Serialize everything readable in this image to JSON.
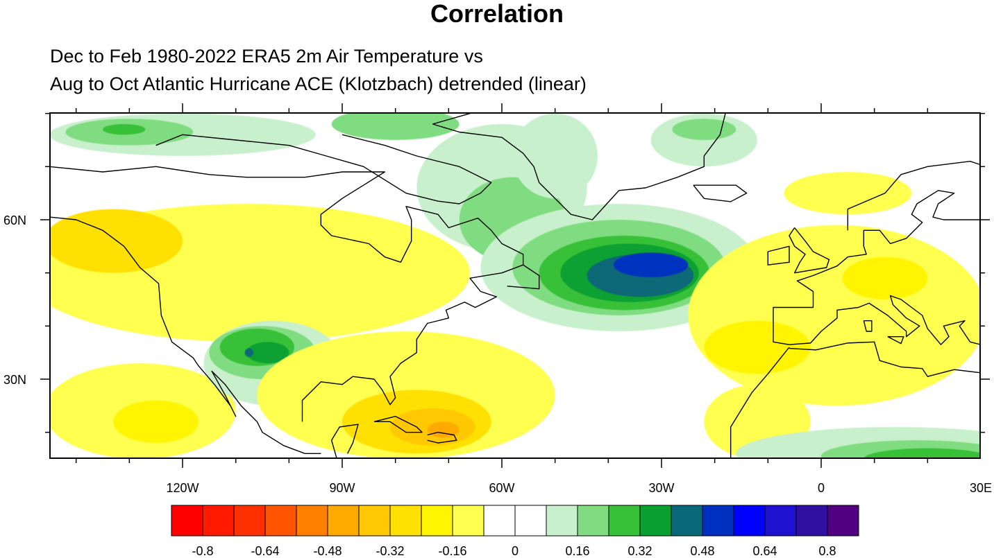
{
  "title": "Correlation",
  "subtitle_lines": [
    "Dec to Feb 1980-2022 ERA5 2m Air Temperature vs",
    "Aug to Oct Atlantic Hurricane ACE (Klotzbach) detrended (linear)"
  ],
  "chart_data": {
    "type": "heatmap",
    "projection": "cylindrical-equidistant",
    "lon_range": [
      -145,
      30
    ],
    "lat_range": [
      15,
      80
    ],
    "x_ticks": [
      {
        "lon": -120,
        "label": "120W"
      },
      {
        "lon": -90,
        "label": "90W"
      },
      {
        "lon": -60,
        "label": "60W"
      },
      {
        "lon": -30,
        "label": "30W"
      },
      {
        "lon": 0,
        "label": "0"
      },
      {
        "lon": 30,
        "label": "30E"
      }
    ],
    "y_ticks": [
      {
        "lat": 60,
        "label": "60N"
      },
      {
        "lat": 30,
        "label": "30N"
      }
    ],
    "colorbar": {
      "levels": [
        -0.8,
        -0.72,
        -0.64,
        -0.56,
        -0.48,
        -0.4,
        -0.32,
        -0.24,
        -0.16,
        -0.08,
        0,
        0.08,
        0.16,
        0.24,
        0.32,
        0.4,
        0.48,
        0.56,
        0.64,
        0.72,
        0.8
      ],
      "labels": [
        "-0.8",
        "-0.64",
        "-0.48",
        "-0.32",
        "-0.16",
        "0",
        "0.16",
        "0.32",
        "0.48",
        "0.64",
        "0.8"
      ],
      "colors": [
        "#ff0000",
        "#ff1a00",
        "#ff3000",
        "#ff5500",
        "#ff8000",
        "#ffaa00",
        "#ffc800",
        "#ffe000",
        "#fff500",
        "#ffff50",
        "#ffffff",
        "#ffffff",
        "#c8f0cc",
        "#80dc80",
        "#38c038",
        "#08a030",
        "#086878",
        "#0030c0",
        "#0000ff",
        "#2010d0",
        "#3010a0",
        "#500080"
      ]
    },
    "features": [
      {
        "region": "western North America",
        "lon": -108,
        "lat": 50,
        "rlon": 42,
        "rlat": 13,
        "value": -0.12
      },
      {
        "region": "Gulf of Alaska coast",
        "lon": -133,
        "lat": 56,
        "rlon": 13,
        "rlat": 6,
        "value": -0.28
      },
      {
        "region": "NE Pacific",
        "lon": -128,
        "lat": 24,
        "rlon": 18,
        "rlat": 9,
        "value": -0.12
      },
      {
        "region": "NE Pacific",
        "lon": -125,
        "lat": 22,
        "rlon": 8,
        "rlat": 4,
        "value": -0.2
      },
      {
        "region": "Southwest US / Mexico",
        "lon": -103,
        "lat": 33,
        "rlon": 13,
        "rlat": 8,
        "value": 0.1
      },
      {
        "region": "Southwest US",
        "lon": -105,
        "lat": 35,
        "rlon": 10,
        "rlat": 5,
        "value": 0.2
      },
      {
        "region": "Southwest US",
        "lon": -106,
        "lat": 36,
        "rlon": 7,
        "rlat": 3.5,
        "value": 0.3
      },
      {
        "region": "Southwest US",
        "lon": -104,
        "lat": 35,
        "rlon": 4,
        "rlat": 2,
        "value": 0.36
      },
      {
        "region": "Southwest US",
        "lon": -107.5,
        "lat": 35,
        "rlon": 0.8,
        "rlat": 0.8,
        "value": 0.44
      },
      {
        "region": "Gulf / Caribbean",
        "lon": -78,
        "lat": 27,
        "rlon": 28,
        "rlat": 12,
        "value": -0.12
      },
      {
        "region": "Caribbean",
        "lon": -76,
        "lat": 22,
        "rlon": 14,
        "rlat": 6,
        "value": -0.28
      },
      {
        "region": "Caribbean",
        "lon": -73,
        "lat": 21,
        "rlon": 8,
        "rlat": 3.5,
        "value": -0.36
      },
      {
        "region": "Hispaniola",
        "lon": -71,
        "lat": 20.5,
        "rlon": 3,
        "rlat": 1.5,
        "value": -0.44
      },
      {
        "region": "Baffin / Labrador",
        "lon": -60,
        "lat": 66,
        "rlon": 16,
        "rlat": 12,
        "value": 0.1
      },
      {
        "region": "Labrador",
        "lon": -58,
        "lat": 60,
        "rlon": 10,
        "rlat": 8,
        "value": 0.18
      },
      {
        "region": "North Atlantic",
        "lon": -38,
        "lat": 51,
        "rlon": 26,
        "rlat": 12,
        "value": 0.1
      },
      {
        "region": "North Atlantic",
        "lon": -38,
        "lat": 51,
        "rlon": 20,
        "rlat": 9,
        "value": 0.2
      },
      {
        "region": "North Atlantic",
        "lon": -37,
        "lat": 50,
        "rlon": 16,
        "rlat": 7,
        "value": 0.3
      },
      {
        "region": "North Atlantic",
        "lon": -36,
        "lat": 50,
        "rlon": 13,
        "rlat": 5.5,
        "value": 0.36
      },
      {
        "region": "North Atlantic",
        "lon": -34,
        "lat": 49.5,
        "rlon": 10,
        "rlat": 4,
        "value": 0.44
      },
      {
        "region": "North Atlantic",
        "lon": -32,
        "lat": 51.5,
        "rlon": 7,
        "rlat": 2.3,
        "value": 0.52
      },
      {
        "region": "Arctic Canada",
        "lon": -120,
        "lat": 76,
        "rlon": 25,
        "rlat": 4,
        "value": 0.1
      },
      {
        "region": "Beaufort Sea",
        "lon": -130,
        "lat": 76.5,
        "rlon": 12,
        "rlat": 2.5,
        "value": 0.2
      },
      {
        "region": "Beaufort Sea",
        "lon": -131,
        "lat": 77,
        "rlon": 4,
        "rlat": 1,
        "value": 0.3
      },
      {
        "region": "Canadian Archipelago",
        "lon": -80,
        "lat": 78,
        "rlon": 12,
        "rlat": 3,
        "value": 0.18
      },
      {
        "region": "East Greenland",
        "lon": -22,
        "lat": 75,
        "rlon": 10,
        "rlat": 5,
        "value": 0.1
      },
      {
        "region": "East Greenland",
        "lon": -22,
        "lat": 77,
        "rlon": 6,
        "rlat": 2,
        "value": 0.2
      },
      {
        "region": "Greenland",
        "lon": -50,
        "lat": 72,
        "rlon": 8,
        "rlat": 8,
        "value": 0.1
      },
      {
        "region": "Europe / North Africa",
        "lon": 3,
        "lat": 42,
        "rlon": 28,
        "rlat": 17,
        "value": -0.12
      },
      {
        "region": "Iberia / Atlantic",
        "lon": -12,
        "lat": 36,
        "rlon": 10,
        "rlat": 5,
        "value": -0.22
      },
      {
        "region": "Central Europe",
        "lon": 12,
        "lat": 49,
        "rlon": 8,
        "rlat": 4,
        "value": -0.22
      },
      {
        "region": "West Africa coast",
        "lon": -12,
        "lat": 22,
        "rlon": 10,
        "rlat": 7,
        "value": -0.14
      },
      {
        "region": "Northern Europe",
        "lon": 5,
        "lat": 65,
        "rlon": 12,
        "rlat": 4,
        "value": -0.1
      },
      {
        "region": "Tropical Atlantic / Sahel",
        "lon": 14,
        "lat": 16,
        "rlon": 30,
        "rlat": 5,
        "value": 0.1
      },
      {
        "region": "Sahel",
        "lon": 18,
        "lat": 15.5,
        "rlon": 18,
        "rlat": 3,
        "value": 0.2
      },
      {
        "region": "Sahel",
        "lon": 20,
        "lat": 15,
        "rlon": 12,
        "rlat": 2,
        "value": 0.3
      }
    ]
  }
}
